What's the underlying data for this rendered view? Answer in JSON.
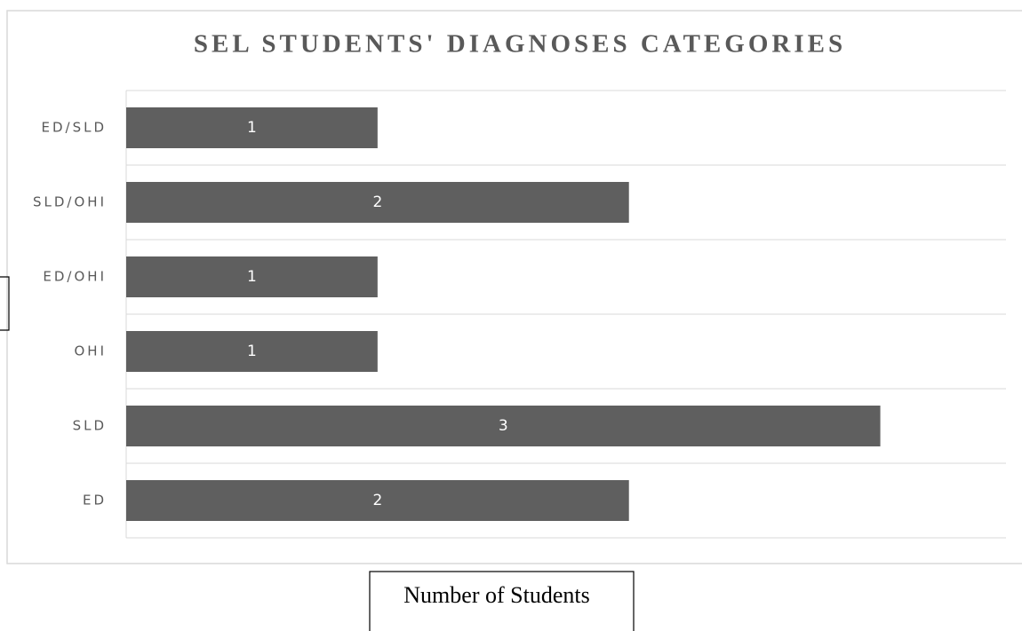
{
  "chart_data": {
    "type": "bar",
    "orientation": "horizontal",
    "title": "SEL STUDENTS' DIAGNOSES CATEGORIES",
    "x_label": "Number of Students",
    "categories": [
      "ED/SLD",
      "SLD/OHI",
      "ED/OHI",
      "OHI",
      "SLD",
      "ED"
    ],
    "values": [
      1,
      2,
      1,
      1,
      3,
      2
    ],
    "color": "#5f5f5f",
    "xlim": [
      0,
      3.5
    ]
  }
}
